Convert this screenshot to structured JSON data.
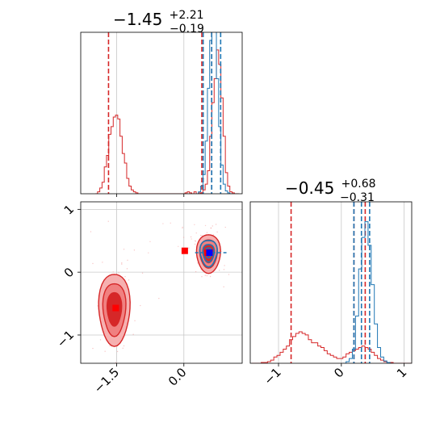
{
  "figure": {
    "type": "corner-plot",
    "colors": {
      "red": "#d62728",
      "blue": "#1f77b4",
      "red_fill": "#f08080",
      "red_fill_light": "#f6b0b0",
      "marker_red": "#ff0000",
      "marker_blue": "#0000ff",
      "grid": "#c8c8c8"
    }
  },
  "chart_data": [
    {
      "type": "histogram",
      "panel": "param1-marginal",
      "title_main": "−1.45",
      "title_sup": "+2.21",
      "title_sub": "−0.19",
      "xlim": [
        -2.3,
        1.3
      ],
      "xticks_grid": [
        -1.5,
        0.0
      ],
      "series": [
        {
          "name": "",
          "color": "#d62728",
          "bins": [
            -2.2,
            2.1
          ],
          "x": [
            -1.95,
            -1.9,
            -1.85,
            -1.8,
            -1.75,
            -1.7,
            -1.65,
            -1.6,
            -1.55,
            -1.5,
            -1.45,
            -1.4,
            -1.35,
            -1.3,
            -1.25,
            -1.2,
            -1.15,
            -1.1,
            -1.05,
            -1.0,
            -0.95,
            -0.9,
            -0.85,
            -0.8,
            -0.75,
            -0.7,
            -0.65,
            -0.6,
            -0.55,
            -0.5,
            -0.45,
            -0.4,
            -0.35,
            -0.3,
            -0.25,
            -0.2,
            -0.15,
            -0.1,
            -0.05,
            0.0,
            0.05,
            0.1,
            0.15,
            0.2,
            0.25,
            0.3,
            0.35,
            0.4,
            0.45,
            0.5,
            0.55,
            0.6,
            0.65,
            0.7,
            0.75,
            0.8,
            0.85,
            0.9,
            0.95,
            1.0,
            1.05,
            1.1,
            1.15,
            1.2
          ],
          "y": [
            0,
            2,
            6,
            12,
            28,
            40,
            62,
            70,
            80,
            82,
            78,
            60,
            42,
            32,
            16,
            8,
            4,
            2,
            1,
            0,
            0,
            0,
            0,
            0,
            0,
            0,
            0,
            0,
            0,
            0,
            0,
            0,
            0,
            0,
            0,
            0,
            0,
            0,
            0,
            0,
            1,
            2,
            1,
            0,
            2,
            0,
            1,
            0,
            4,
            10,
            24,
            60,
            95,
            120,
            150,
            135,
            100,
            60,
            22,
            8,
            2,
            1,
            0,
            0
          ],
          "quantiles": [
            -1.68,
            0.4,
            0.62
          ]
        },
        {
          "name": "",
          "color": "#1f77b4",
          "x": [
            0.3,
            0.35,
            0.4,
            0.45,
            0.5,
            0.55,
            0.6,
            0.65,
            0.7,
            0.75,
            0.8,
            0.85,
            0.9,
            0.95,
            1.0,
            1.05
          ],
          "y": [
            0,
            2,
            8,
            20,
            55,
            110,
            160,
            200,
            175,
            120,
            70,
            30,
            10,
            3,
            1,
            0
          ],
          "quantiles": [
            0.43,
            0.62,
            0.82
          ]
        }
      ]
    },
    {
      "type": "contour2d",
      "panel": "joint",
      "xlim": [
        -2.3,
        1.3
      ],
      "ylim": [
        -1.45,
        1.12
      ],
      "xticks": [
        -1.5,
        0.0
      ],
      "xtick_labels": [
        "−1.5",
        "0.0"
      ],
      "yticks": [
        1,
        0,
        -1
      ],
      "ytick_labels": [
        "1",
        "0",
        "−1"
      ],
      "red_mode_1": {
        "center": [
          -1.55,
          -0.58
        ],
        "sx": 0.17,
        "sy": 0.28
      },
      "red_mode_2": {
        "center": [
          0.55,
          0.3
        ],
        "sx": 0.13,
        "sy": 0.15
      },
      "blue_mode": {
        "center": [
          0.55,
          0.31
        ],
        "sx": 0.09,
        "sy": 0.1
      },
      "markers": [
        {
          "name": "red-marker-left",
          "x": -1.52,
          "y": -0.57,
          "color": "#ff0000"
        },
        {
          "name": "red-marker-mid",
          "x": 0.02,
          "y": 0.34,
          "color": "#ff0000"
        },
        {
          "name": "red-marker-right",
          "x": 0.53,
          "y": 0.31,
          "color": "#ff0000"
        },
        {
          "name": "blue-marker",
          "x": 0.57,
          "y": 0.31,
          "color": "#0000ff"
        }
      ]
    },
    {
      "type": "histogram",
      "panel": "param2-marginal",
      "title_main": "−0.45",
      "title_sup": "+0.68",
      "title_sub": "−0.31",
      "xlim": [
        -1.45,
        1.12
      ],
      "xticks": [
        -1,
        0,
        1
      ],
      "xtick_labels": [
        "−1",
        "0",
        "1"
      ],
      "series": [
        {
          "name": "",
          "color": "#d62728",
          "x": [
            -1.4,
            -1.35,
            -1.3,
            -1.25,
            -1.2,
            -1.15,
            -1.1,
            -1.05,
            -1.0,
            -0.95,
            -0.9,
            -0.85,
            -0.8,
            -0.75,
            -0.7,
            -0.65,
            -0.6,
            -0.55,
            -0.5,
            -0.45,
            -0.4,
            -0.35,
            -0.3,
            -0.25,
            -0.2,
            -0.15,
            -0.1,
            -0.05,
            0.0,
            0.05,
            0.1,
            0.15,
            0.2,
            0.25,
            0.3,
            0.35,
            0.4,
            0.45,
            0.5,
            0.55,
            0.6,
            0.65,
            0.7,
            0.75,
            0.8,
            0.85,
            0.9,
            0.95,
            1.0,
            1.05,
            1.1
          ],
          "y": [
            0,
            0,
            0,
            1,
            1,
            2,
            4,
            8,
            10,
            14,
            18,
            22,
            30,
            34,
            38,
            40,
            38,
            36,
            30,
            26,
            26,
            22,
            20,
            16,
            12,
            10,
            8,
            6,
            6,
            8,
            12,
            14,
            16,
            18,
            20,
            22,
            20,
            18,
            14,
            10,
            6,
            4,
            2,
            1,
            1,
            0,
            0,
            0,
            0,
            0,
            0
          ],
          "quantiles": [
            -0.8,
            0.2,
            0.38
          ]
        },
        {
          "name": "",
          "color": "#1f77b4",
          "x": [
            0.05,
            0.1,
            0.15,
            0.2,
            0.25,
            0.3,
            0.35,
            0.4,
            0.45,
            0.5,
            0.55,
            0.6,
            0.65,
            0.7,
            0.75,
            0.8
          ],
          "y": [
            0,
            2,
            6,
            18,
            60,
            120,
            160,
            180,
            150,
            100,
            50,
            20,
            8,
            3,
            1,
            0
          ],
          "quantiles": [
            0.2,
            0.32,
            0.45
          ]
        }
      ]
    }
  ]
}
